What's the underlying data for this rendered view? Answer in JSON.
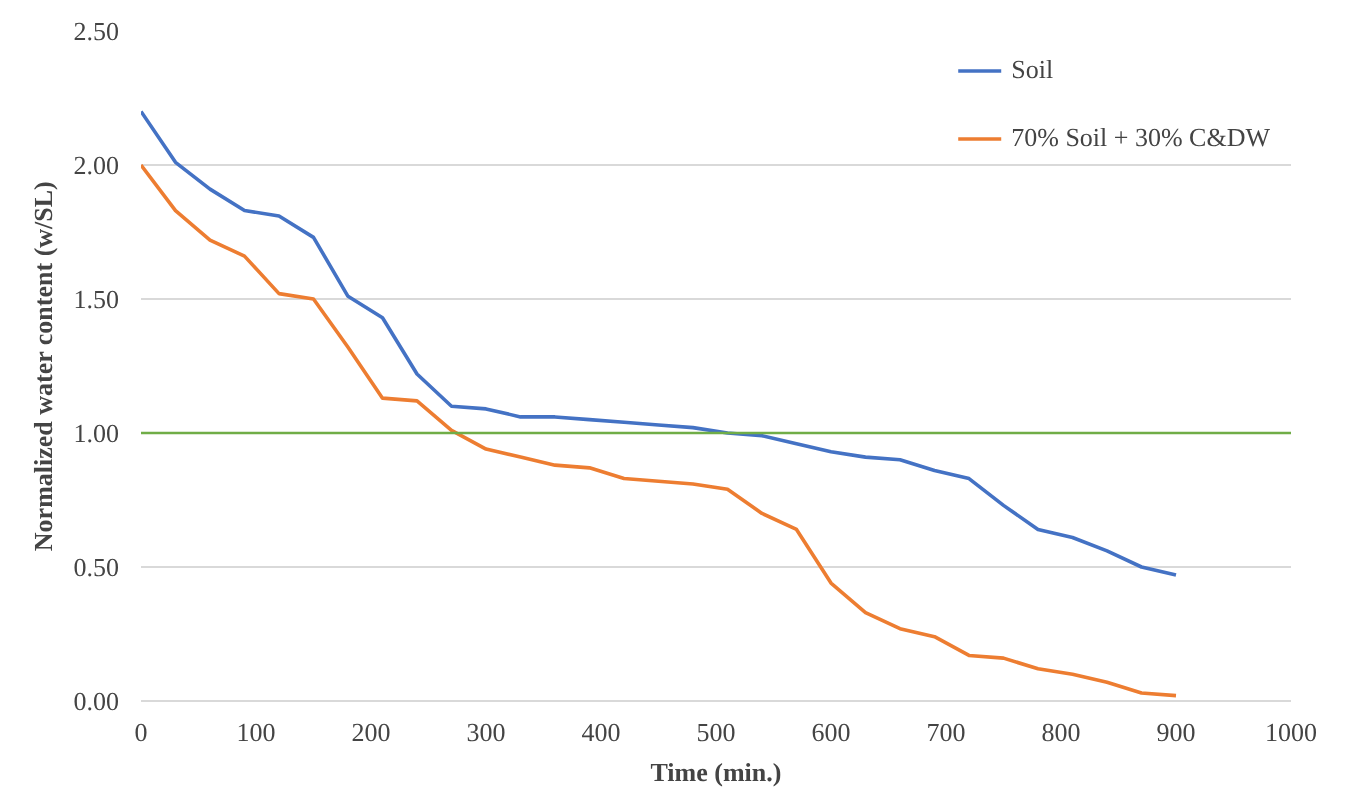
{
  "chart_data": {
    "type": "line",
    "xlabel": "Time (min.)",
    "ylabel": "Normalized water content (w/SL)",
    "x": [
      0,
      30,
      60,
      90,
      120,
      150,
      180,
      210,
      240,
      270,
      300,
      330,
      360,
      390,
      420,
      450,
      480,
      510,
      540,
      570,
      600,
      630,
      660,
      690,
      720,
      750,
      780,
      810,
      840,
      870,
      900
    ],
    "series": [
      {
        "name": "Soil",
        "color": "#4472c4",
        "values": [
          2.2,
          2.01,
          1.91,
          1.83,
          1.81,
          1.73,
          1.51,
          1.43,
          1.22,
          1.1,
          1.09,
          1.06,
          1.06,
          1.05,
          1.04,
          1.03,
          1.02,
          1.0,
          0.99,
          0.96,
          0.93,
          0.91,
          0.9,
          0.86,
          0.83,
          0.73,
          0.64,
          0.61,
          0.56,
          0.5,
          0.47
        ]
      },
      {
        "name": "70% Soil + 30% C&DW",
        "color": "#ed7d31",
        "values": [
          2.0,
          1.83,
          1.72,
          1.66,
          1.52,
          1.5,
          1.32,
          1.13,
          1.12,
          1.01,
          0.94,
          0.91,
          0.88,
          0.87,
          0.83,
          0.82,
          0.81,
          0.79,
          0.7,
          0.64,
          0.44,
          0.33,
          0.27,
          0.24,
          0.17,
          0.16,
          0.12,
          0.1,
          0.07,
          0.03,
          0.02
        ]
      }
    ],
    "xlim": [
      0,
      1000
    ],
    "xticks": [
      0,
      100,
      200,
      300,
      400,
      500,
      600,
      700,
      800,
      900,
      1000
    ],
    "ylim": [
      0,
      2.5
    ],
    "yticks": [
      {
        "value": 0,
        "label": "0.00"
      },
      {
        "value": 0.5,
        "label": "0.50"
      },
      {
        "value": 1,
        "label": "1.00"
      },
      {
        "value": 1.5,
        "label": "1.50"
      },
      {
        "value": 2,
        "label": "2.00"
      },
      {
        "value": 2.5,
        "label": "2.50"
      }
    ],
    "ref_lines": [
      {
        "axis": "y",
        "value": 1.0,
        "label": null,
        "color": "#70ad47"
      }
    ],
    "grid": "y",
    "legend": "top right",
    "marker": "none",
    "line_style": "solid"
  }
}
